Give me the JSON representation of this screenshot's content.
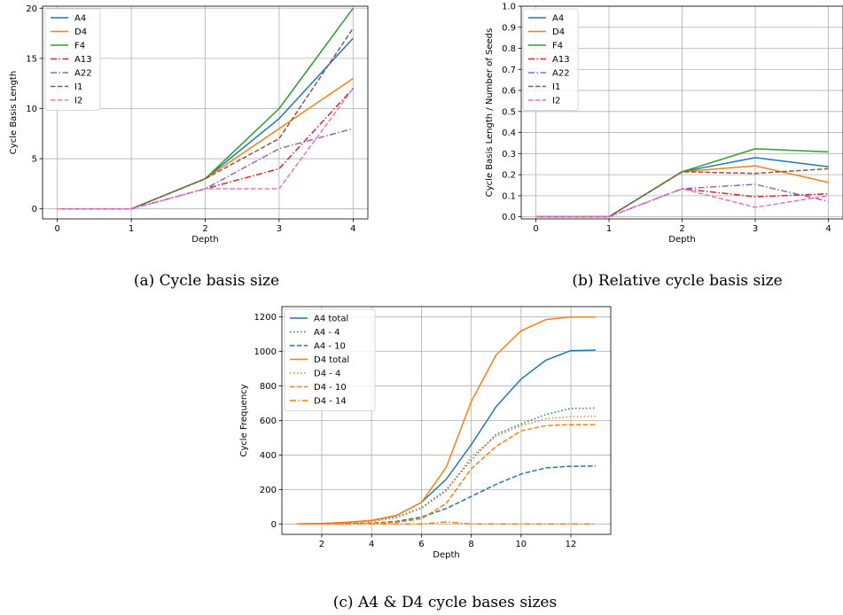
{
  "chart_data": [
    {
      "id": "a",
      "type": "line",
      "caption": "(a) Cycle basis size",
      "xlabel": "Depth",
      "ylabel": "Cycle Basis Length",
      "x": [
        0,
        1,
        2,
        3,
        4
      ],
      "xlim": [
        -0.2,
        4.2
      ],
      "ylim": [
        -1,
        20.2
      ],
      "xticks": [
        0,
        1,
        2,
        3,
        4
      ],
      "yticks": [
        0,
        5,
        10,
        15,
        20
      ],
      "grid": true,
      "legend_position": "top-left",
      "series": [
        {
          "name": "A4",
          "color": "#1f77b4",
          "dash": "solid",
          "values": [
            0,
            0,
            3,
            9,
            17
          ]
        },
        {
          "name": "D4",
          "color": "#ff7f0e",
          "dash": "solid",
          "values": [
            0,
            0,
            3,
            8,
            13
          ]
        },
        {
          "name": "F4",
          "color": "#2ca02c",
          "dash": "solid",
          "values": [
            0,
            0,
            3,
            10,
            20
          ]
        },
        {
          "name": "A13",
          "color": "#d62728",
          "dash": "dashdot",
          "values": [
            0,
            0,
            2,
            4,
            12
          ]
        },
        {
          "name": "A22",
          "color": "#9467bd",
          "dash": "dashdot",
          "values": [
            0,
            0,
            2,
            6,
            8
          ]
        },
        {
          "name": "I1",
          "color": "#8c564b",
          "dash": "dashed",
          "values": [
            0,
            0,
            3,
            7,
            18
          ]
        },
        {
          "name": "I2",
          "color": "#e377c2",
          "dash": "dashed",
          "values": [
            0,
            0,
            2,
            2,
            12
          ]
        }
      ]
    },
    {
      "id": "b",
      "type": "line",
      "caption": "(b) Relative cycle basis size",
      "xlabel": "Depth",
      "ylabel": "Cycle Basis Length / Number of Seeds",
      "x": [
        0,
        1,
        2,
        3,
        4
      ],
      "xlim": [
        -0.2,
        4.2
      ],
      "ylim": [
        -0.01,
        1.0
      ],
      "xticks": [
        0,
        1,
        2,
        3,
        4
      ],
      "yticks": [
        0.0,
        0.1,
        0.2,
        0.3,
        0.4,
        0.5,
        0.6,
        0.7,
        0.8,
        0.9,
        1.0
      ],
      "ytick_labels": [
        "0.0",
        "0.1",
        "0.2",
        "0.3",
        "0.4",
        "0.5",
        "0.6",
        "0.7",
        "0.8",
        "0.9",
        "1.0"
      ],
      "grid": true,
      "legend_position": "top-left",
      "series": [
        {
          "name": "A4",
          "color": "#1f77b4",
          "dash": "solid",
          "values": [
            0,
            0,
            0.214,
            0.281,
            0.238
          ]
        },
        {
          "name": "D4",
          "color": "#ff7f0e",
          "dash": "solid",
          "values": [
            0,
            0,
            0.214,
            0.242,
            0.163
          ]
        },
        {
          "name": "F4",
          "color": "#2ca02c",
          "dash": "solid",
          "values": [
            0,
            0,
            0.214,
            0.323,
            0.308
          ]
        },
        {
          "name": "A13",
          "color": "#d62728",
          "dash": "dashdot",
          "values": [
            0,
            0,
            0.133,
            0.095,
            0.109
          ]
        },
        {
          "name": "A22",
          "color": "#9467bd",
          "dash": "dashdot",
          "values": [
            0,
            0,
            0.133,
            0.154,
            0.073
          ]
        },
        {
          "name": "I1",
          "color": "#8c564b",
          "dash": "dashed",
          "values": [
            0,
            0,
            0.214,
            0.206,
            0.228
          ]
        },
        {
          "name": "I2",
          "color": "#e377c2",
          "dash": "dashed",
          "values": [
            0,
            0,
            0.133,
            0.045,
            0.1
          ]
        }
      ]
    },
    {
      "id": "c",
      "type": "line",
      "caption": "(c) A4 & D4 cycle bases sizes",
      "xlabel": "Depth",
      "ylabel": "Cycle Frequency",
      "x": [
        1,
        2,
        3,
        4,
        5,
        6,
        7,
        8,
        9,
        10,
        11,
        12,
        13
      ],
      "xlim": [
        0.4,
        13.6
      ],
      "ylim": [
        -60,
        1260
      ],
      "xticks": [
        2,
        4,
        6,
        8,
        10,
        12
      ],
      "yticks": [
        0,
        200,
        400,
        600,
        800,
        1000,
        1200
      ],
      "grid": true,
      "legend_position": "top-left",
      "series": [
        {
          "name": "A4 total",
          "color": "#1f77b4",
          "dash": "solid",
          "values": [
            0,
            3,
            10,
            20,
            50,
            125,
            260,
            460,
            680,
            840,
            950,
            1005,
            1008
          ]
        },
        {
          "name": "A4 - 4",
          "color": "#1f77b4",
          "dash": "dotted",
          "values": [
            0,
            2,
            7,
            15,
            40,
            95,
            200,
            370,
            520,
            580,
            635,
            670,
            672
          ]
        },
        {
          "name": "A4 - 10",
          "color": "#1f77b4",
          "dash": "dashed",
          "values": [
            0,
            0,
            2,
            5,
            15,
            40,
            90,
            160,
            230,
            290,
            325,
            335,
            336
          ]
        },
        {
          "name": "D4 total",
          "color": "#ff7f0e",
          "dash": "solid",
          "values": [
            0,
            3,
            10,
            20,
            50,
            125,
            330,
            710,
            980,
            1120,
            1185,
            1200,
            1200
          ]
        },
        {
          "name": "D4 - 4",
          "color": "#ff7f0e",
          "dash": "dotted",
          "values": [
            0,
            2,
            7,
            15,
            35,
            90,
            190,
            390,
            510,
            570,
            610,
            622,
            624
          ]
        },
        {
          "name": "D4 - 10",
          "color": "#ff7f0e",
          "dash": "dashed",
          "values": [
            0,
            0,
            2,
            5,
            10,
            30,
            120,
            320,
            450,
            540,
            570,
            576,
            576
          ]
        },
        {
          "name": "D4 - 14",
          "color": "#ff7f0e",
          "dash": "dashdot",
          "values": [
            0,
            0,
            0,
            0,
            0,
            0,
            12,
            0,
            0,
            0,
            0,
            0,
            0
          ]
        }
      ]
    }
  ]
}
